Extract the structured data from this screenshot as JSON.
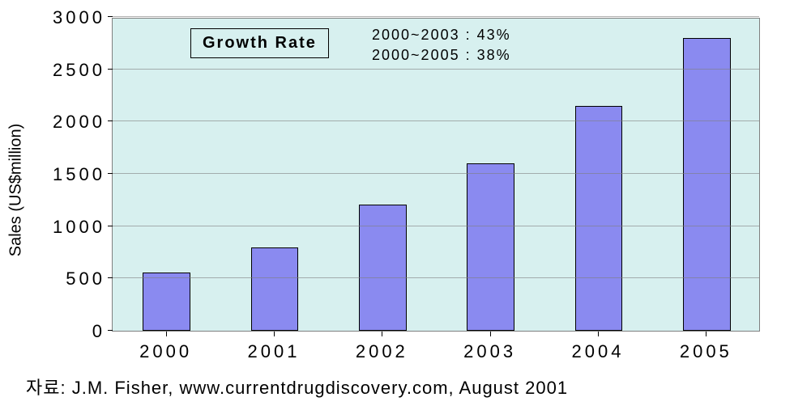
{
  "chart": {
    "type": "bar",
    "background_color": "#d7f0ef",
    "bar_color": "#8a8af0",
    "bar_border_color": "#000000",
    "grid_color": "#7f7f7f",
    "y_axis_label": "Sales (US$million)",
    "ylim_min": 0,
    "ylim_max": 3000,
    "y_tick_step": 500,
    "y_ticks": [
      "0",
      "500",
      "1000",
      "1500",
      "2000",
      "2500",
      "3000"
    ],
    "categories": [
      "2000",
      "2001",
      "2002",
      "2003",
      "2004",
      "2005"
    ],
    "values": [
      560,
      800,
      1210,
      1600,
      2150,
      2800
    ],
    "bar_width_ratio": 0.44,
    "annotation_title": "Growth Rate",
    "annotation_line1": "2000~2003 : 43%",
    "annotation_line2": "2000~2005 : 38%",
    "title_fontsize": 20,
    "tick_fontsize": 22
  },
  "source": "자료: J.M. Fisher, www.currentdrugdiscovery.com, August 2001"
}
